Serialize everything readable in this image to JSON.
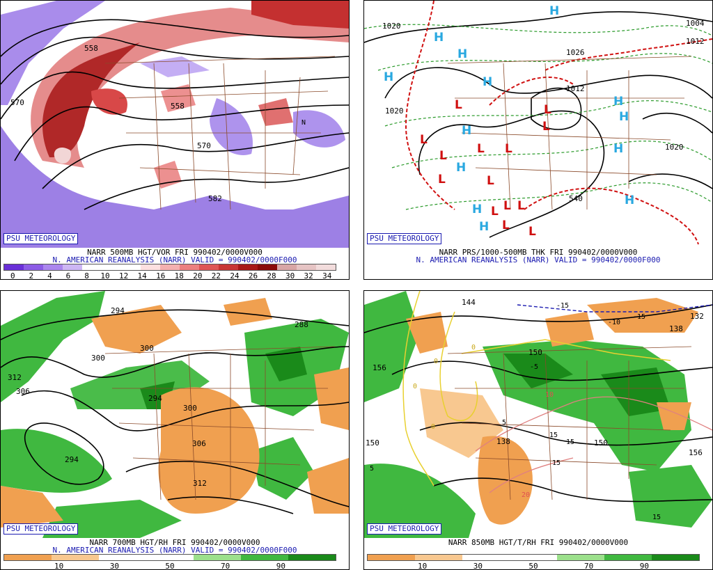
{
  "panels": [
    {
      "id": "tl",
      "badge": "PSU METEOROLOGY",
      "line1": "NARR 500MB HGT/VOR FRI 990402/0000V000",
      "line2": "N. AMERICAN REANALYSIS (NARR) VALID = 990402/0000F000",
      "scale_labels": [
        "0",
        "2",
        "4",
        "6",
        "8",
        "10",
        "12",
        "14",
        "16",
        "18",
        "20",
        "22",
        "24",
        "26",
        "28",
        "30",
        "32",
        "34"
      ],
      "scale_colors": [
        "#6a30d8",
        "#8c5ce6",
        "#ab86ee",
        "#cdb6f4",
        "#ffffff",
        "#ffffff",
        "#ffffff",
        "#fde0e0",
        "#f4b0b0",
        "#ec8080",
        "#de5555",
        "#c83535",
        "#a81818",
        "#8a0a0a",
        "#d8a6a6",
        "#e6c4c4",
        "#f2dcdc"
      ],
      "contour_labels": [
        "558",
        "570",
        "558",
        "570",
        "582",
        "N"
      ]
    },
    {
      "id": "tr",
      "badge": "PSU METEOROLOGY",
      "line1": "NARR PRS/1000-500MB THK FRI 990402/0000V000",
      "line2": "N. AMERICAN REANALYSIS (NARR) VALID = 990402/0000F000",
      "contour_labels": [
        "1020",
        "1020",
        "1020",
        "1026",
        "1012",
        "1004",
        "1012",
        "540"
      ],
      "high_label": "H",
      "low_label": "L"
    },
    {
      "id": "bl",
      "badge": "PSU METEOROLOGY",
      "line1": "NARR 700MB HGT/RH FRI 990402/0000V000",
      "line2": "N. AMERICAN REANALYSIS (NARR) VALID = 990402/0000F000",
      "scale_labels": [
        "10",
        "30",
        "50",
        "70",
        "90"
      ],
      "scale_colors": [
        "#f0a050",
        "#f8c890",
        "#ffffff",
        "#ffffff",
        "#9ce08c",
        "#40b840",
        "#1a8a1a"
      ],
      "contour_labels": [
        "294",
        "300",
        "306",
        "312",
        "300",
        "294",
        "288",
        "300",
        "306",
        "312",
        "294"
      ]
    },
    {
      "id": "br",
      "badge": "PSU METEOROLOGY",
      "line1": "NARR 850MB HGT/T/RH FRI 990402/0000V000",
      "scale_labels": [
        "10",
        "30",
        "50",
        "70",
        "90"
      ],
      "scale_colors": [
        "#f0a050",
        "#f8c890",
        "#ffffff",
        "#ffffff",
        "#9ce08c",
        "#40b840",
        "#1a8a1a"
      ],
      "temp_labels": [
        "-15",
        "-10",
        "-15",
        "-5",
        "5",
        "10",
        "15",
        "15",
        "15",
        "20",
        "5",
        "15",
        "0",
        "0",
        "0",
        "0"
      ],
      "height_labels": [
        "156",
        "150",
        "150",
        "138",
        "150",
        "156",
        "132",
        "138",
        "144"
      ]
    }
  ]
}
